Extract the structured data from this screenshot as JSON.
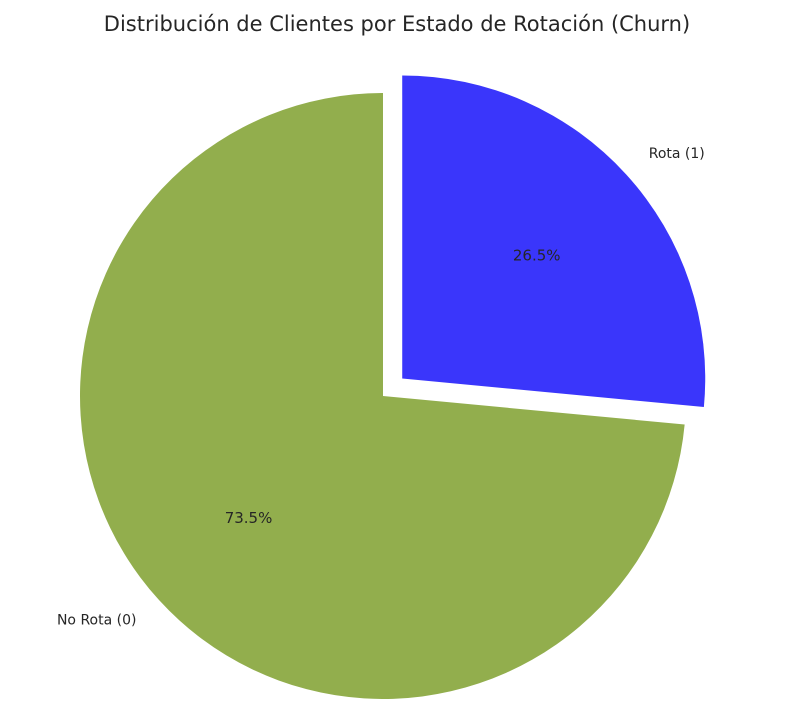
{
  "chart_data": {
    "type": "pie",
    "title": "Distribución de Clientes por Estado de Rotación (Churn)",
    "categories": [
      "No Rota (0)",
      "Rota (1)"
    ],
    "values": [
      73.5,
      26.5
    ],
    "percent_labels": [
      "73.5%",
      "26.5%"
    ],
    "colors": [
      "#92ae4d",
      "#3a36fb"
    ],
    "exploded": [
      false,
      true
    ],
    "start_angle": 90,
    "direction": "counterclockwise"
  }
}
